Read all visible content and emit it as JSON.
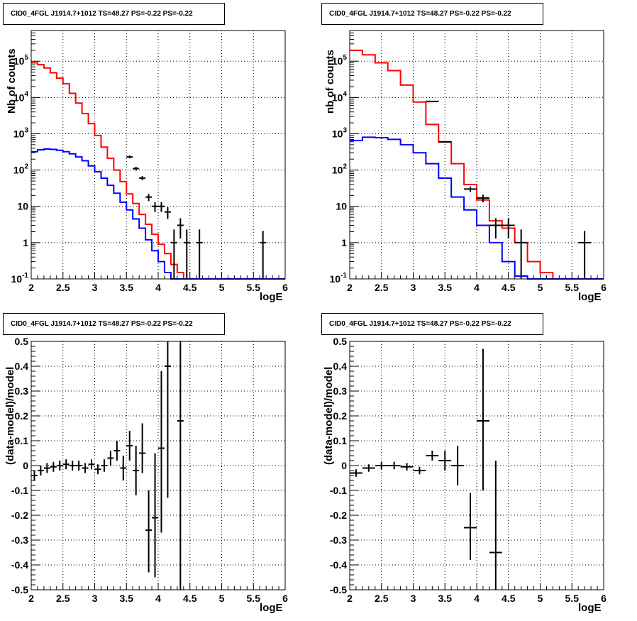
{
  "chart_data": [
    {
      "type": "line",
      "title": "CID0_4FGL J1914.7+1012 TS=48.27 PS=-0.22 PS=-0.22",
      "xlabel": "logE",
      "ylabel": "Nb of counts",
      "yscale": "log",
      "xlim": [
        2,
        6
      ],
      "ylim": [
        0.1,
        700000
      ],
      "grid": true,
      "x_ticks": [
        "2",
        "2.5",
        "3",
        "3.5",
        "4",
        "4.5",
        "5",
        "5.5",
        "6"
      ],
      "y_ticks": [
        "10^{-1}",
        "1",
        "10",
        "10^{2}",
        "10^{3}",
        "10^{4}",
        "10^{5}"
      ],
      "bin_edges": [
        2.0,
        2.1,
        2.2,
        2.3,
        2.4,
        2.5,
        2.6,
        2.7,
        2.8,
        2.9,
        3.0,
        3.1,
        3.2,
        3.3,
        3.4,
        3.5,
        3.6,
        3.7,
        3.8,
        3.9,
        4.0,
        4.1,
        4.2,
        4.3,
        4.4,
        4.5,
        4.6,
        4.7,
        4.8,
        4.9,
        5.0,
        5.1,
        5.2,
        5.3,
        5.4,
        5.5,
        5.6,
        5.7,
        5.8,
        5.9,
        6.0
      ],
      "series": [
        {
          "color": "#ff0000",
          "values": [
            90000,
            80000,
            65000,
            48000,
            34000,
            24000,
            13000,
            7000,
            3600,
            1900,
            900,
            430,
            210,
            100,
            48,
            22,
            12,
            6,
            3.2,
            1.7,
            0.9,
            0.5,
            0.25,
            0.15,
            0.1,
            0.08,
            0.08,
            0.08,
            0.08,
            0.08,
            0.08,
            0.08,
            0.08,
            0.08,
            0.08,
            0.08,
            0.08,
            0.08,
            0.08,
            0.08
          ]
        },
        {
          "color": "#0000ff",
          "values": [
            320,
            360,
            380,
            370,
            350,
            320,
            280,
            230,
            180,
            130,
            90,
            60,
            38,
            23,
            13,
            8,
            4.5,
            2.5,
            1.2,
            0.6,
            0.3,
            0.15,
            0.1,
            0.08,
            0.08,
            0.08,
            0.08,
            0.08,
            0.08,
            0.08,
            0.08,
            0.08,
            0.08,
            0.08,
            0.08,
            0.08,
            0.08,
            0.08,
            0.08,
            0.08
          ]
        }
      ],
      "points": [
        {
          "x": 3.55,
          "xerr": 0.05,
          "y": 230,
          "ylo": 210,
          "yhi": 250
        },
        {
          "x": 3.65,
          "xerr": 0.05,
          "y": 110,
          "ylo": 97,
          "yhi": 123
        },
        {
          "x": 3.75,
          "xerr": 0.05,
          "y": 60,
          "ylo": 52,
          "yhi": 68
        },
        {
          "x": 3.85,
          "xerr": 0.05,
          "y": 18,
          "ylo": 14,
          "yhi": 22
        },
        {
          "x": 3.95,
          "xerr": 0.05,
          "y": 10,
          "ylo": 7,
          "yhi": 13
        },
        {
          "x": 4.05,
          "xerr": 0.05,
          "y": 10,
          "ylo": 7,
          "yhi": 13
        },
        {
          "x": 4.15,
          "xerr": 0.05,
          "y": 7,
          "ylo": 4.5,
          "yhi": 9.5
        },
        {
          "x": 4.25,
          "xerr": 0.05,
          "y": 1,
          "ylo": 0.1,
          "yhi": 2.3
        },
        {
          "x": 4.35,
          "xerr": 0.05,
          "y": 3,
          "ylo": 1.3,
          "yhi": 4.7
        },
        {
          "x": 4.45,
          "xerr": 0.05,
          "y": 1,
          "ylo": 0.1,
          "yhi": 2.3
        },
        {
          "x": 4.65,
          "xerr": 0.05,
          "y": 1,
          "ylo": 0.1,
          "yhi": 2.3
        },
        {
          "x": 5.65,
          "xerr": 0.05,
          "y": 1,
          "ylo": 0.1,
          "yhi": 2.1
        }
      ]
    },
    {
      "type": "line",
      "title": "CID0_4FGL J1914.7+1012 TS=48.27 PS=-0.22 PS=-0.22",
      "xlabel": "logE",
      "ylabel": "nb of counts",
      "yscale": "log",
      "xlim": [
        2,
        6
      ],
      "ylim": [
        0.1,
        700000
      ],
      "grid": true,
      "x_ticks": [
        "2",
        "2.5",
        "3",
        "3.5",
        "4",
        "4.5",
        "5",
        "5.5",
        "6"
      ],
      "y_ticks": [
        "10^{-1}",
        "1",
        "10",
        "10^{2}",
        "10^{3}",
        "10^{4}",
        "10^{5}"
      ],
      "bin_edges": [
        2.0,
        2.2,
        2.4,
        2.6,
        2.8,
        3.0,
        3.2,
        3.4,
        3.6,
        3.8,
        4.0,
        4.2,
        4.4,
        4.6,
        4.8,
        5.0,
        5.2,
        5.4,
        5.6,
        5.8,
        6.0
      ],
      "series": [
        {
          "color": "#ff0000",
          "values": [
            200000,
            150000,
            90000,
            55000,
            22000,
            7500,
            1800,
            600,
            150,
            40,
            15,
            4,
            2.5,
            1,
            0.3,
            0.15,
            0.08,
            0.08,
            0.08,
            0.08
          ]
        },
        {
          "color": "#0000ff",
          "values": [
            650,
            800,
            780,
            700,
            500,
            300,
            150,
            60,
            18,
            8,
            3,
            1,
            0.3,
            0.12,
            0.08,
            0.08,
            0.08,
            0.08,
            0.08,
            0.08
          ]
        }
      ],
      "points": [
        {
          "x": 3.3,
          "xerr": 0.1,
          "y": 7800,
          "ylo": 7600,
          "yhi": 8000
        },
        {
          "x": 3.5,
          "xerr": 0.1,
          "y": 600,
          "ylo": 570,
          "yhi": 630
        },
        {
          "x": 3.9,
          "xerr": 0.1,
          "y": 30,
          "ylo": 25,
          "yhi": 35
        },
        {
          "x": 4.1,
          "xerr": 0.1,
          "y": 17,
          "ylo": 13,
          "yhi": 21
        },
        {
          "x": 4.3,
          "xerr": 0.1,
          "y": 3,
          "ylo": 1.3,
          "yhi": 4.7
        },
        {
          "x": 4.5,
          "xerr": 0.1,
          "y": 3,
          "ylo": 1.3,
          "yhi": 4.7
        },
        {
          "x": 4.7,
          "xerr": 0.1,
          "y": 1,
          "ylo": 0.1,
          "yhi": 2.3
        },
        {
          "x": 5.7,
          "xerr": 0.1,
          "y": 1,
          "ylo": 0.1,
          "yhi": 2.1
        }
      ]
    },
    {
      "type": "scatter",
      "title": "CID0_4FGL J1914.7+1012 TS=48.27 PS=-0.22 PS=-0.22",
      "xlabel": "logE",
      "ylabel": "(data-model)/model",
      "yscale": "linear",
      "xlim": [
        2,
        6
      ],
      "ylim": [
        -0.5,
        0.5
      ],
      "grid": true,
      "x_ticks": [
        "2",
        "2.5",
        "3",
        "3.5",
        "4",
        "4.5",
        "5",
        "5.5",
        "6"
      ],
      "y_ticks": [
        "-0.5",
        "-0.4",
        "-0.3",
        "-0.2",
        "-0.1",
        "0",
        "0.1",
        "0.2",
        "0.3",
        "0.4",
        "0.5"
      ],
      "points": [
        {
          "x": 2.05,
          "xerr": 0.05,
          "y": -0.04,
          "ylo": -0.06,
          "yhi": -0.02
        },
        {
          "x": 2.15,
          "xerr": 0.05,
          "y": -0.02,
          "ylo": -0.04,
          "yhi": 0.0
        },
        {
          "x": 2.25,
          "xerr": 0.05,
          "y": -0.01,
          "ylo": -0.03,
          "yhi": 0.01
        },
        {
          "x": 2.35,
          "xerr": 0.05,
          "y": -0.005,
          "ylo": -0.025,
          "yhi": 0.015
        },
        {
          "x": 2.45,
          "xerr": 0.05,
          "y": 0.0,
          "ylo": -0.02,
          "yhi": 0.02
        },
        {
          "x": 2.55,
          "xerr": 0.05,
          "y": 0.005,
          "ylo": -0.015,
          "yhi": 0.025
        },
        {
          "x": 2.65,
          "xerr": 0.05,
          "y": 0.0,
          "ylo": -0.02,
          "yhi": 0.02
        },
        {
          "x": 2.75,
          "xerr": 0.05,
          "y": 0.0,
          "ylo": -0.02,
          "yhi": 0.02
        },
        {
          "x": 2.85,
          "xerr": 0.05,
          "y": -0.01,
          "ylo": -0.03,
          "yhi": 0.01
        },
        {
          "x": 2.95,
          "xerr": 0.05,
          "y": 0.005,
          "ylo": -0.015,
          "yhi": 0.025
        },
        {
          "x": 3.05,
          "xerr": 0.05,
          "y": -0.015,
          "ylo": -0.035,
          "yhi": 0.005
        },
        {
          "x": 3.15,
          "xerr": 0.05,
          "y": 0.0,
          "ylo": -0.025,
          "yhi": 0.025
        },
        {
          "x": 3.25,
          "xerr": 0.05,
          "y": 0.03,
          "ylo": 0.0,
          "yhi": 0.06
        },
        {
          "x": 3.35,
          "xerr": 0.05,
          "y": 0.06,
          "ylo": 0.02,
          "yhi": 0.1
        },
        {
          "x": 3.45,
          "xerr": 0.05,
          "y": -0.01,
          "ylo": -0.06,
          "yhi": 0.04
        },
        {
          "x": 3.55,
          "xerr": 0.05,
          "y": 0.08,
          "ylo": 0.02,
          "yhi": 0.14
        },
        {
          "x": 3.65,
          "xerr": 0.05,
          "y": -0.02,
          "ylo": -0.12,
          "yhi": 0.08
        },
        {
          "x": 3.75,
          "xerr": 0.05,
          "y": 0.05,
          "ylo": -0.03,
          "yhi": 0.17
        },
        {
          "x": 3.85,
          "xerr": 0.05,
          "y": -0.26,
          "ylo": -0.43,
          "yhi": -0.1
        },
        {
          "x": 3.95,
          "xerr": 0.05,
          "y": -0.21,
          "ylo": -0.45,
          "yhi": 0.05
        },
        {
          "x": 4.05,
          "xerr": 0.05,
          "y": 0.07,
          "ylo": -0.27,
          "yhi": 0.38
        },
        {
          "x": 4.15,
          "xerr": 0.05,
          "y": 0.4,
          "ylo": -0.13,
          "yhi": 0.5
        },
        {
          "x": 4.35,
          "xerr": 0.05,
          "y": 0.18,
          "ylo": -0.5,
          "yhi": 0.5
        }
      ]
    },
    {
      "type": "scatter",
      "title": "CID0_4FGL J1914.7+1012 TS=48.27 PS=-0.22 PS=-0.22",
      "xlabel": "logE",
      "ylabel": "(data-model)/model",
      "yscale": "linear",
      "xlim": [
        2,
        6
      ],
      "ylim": [
        -0.5,
        0.5
      ],
      "grid": true,
      "x_ticks": [
        "2",
        "2.5",
        "3",
        "3.5",
        "4",
        "4.5",
        "5",
        "5.5",
        "6"
      ],
      "y_ticks": [
        "-0.5",
        "-0.4",
        "-0.3",
        "-0.2",
        "-0.1",
        "0",
        "0.1",
        "0.2",
        "0.3",
        "0.4",
        "0.5"
      ],
      "points": [
        {
          "x": 2.1,
          "xerr": 0.1,
          "y": -0.03,
          "ylo": -0.045,
          "yhi": -0.015
        },
        {
          "x": 2.3,
          "xerr": 0.1,
          "y": -0.01,
          "ylo": -0.025,
          "yhi": 0.005
        },
        {
          "x": 2.5,
          "xerr": 0.1,
          "y": 0.0,
          "ylo": -0.015,
          "yhi": 0.015
        },
        {
          "x": 2.7,
          "xerr": 0.1,
          "y": 0.0,
          "ylo": -0.015,
          "yhi": 0.015
        },
        {
          "x": 2.9,
          "xerr": 0.1,
          "y": -0.005,
          "ylo": -0.02,
          "yhi": 0.01
        },
        {
          "x": 3.1,
          "xerr": 0.1,
          "y": -0.02,
          "ylo": -0.035,
          "yhi": -0.005
        },
        {
          "x": 3.3,
          "xerr": 0.1,
          "y": 0.04,
          "ylo": 0.02,
          "yhi": 0.06
        },
        {
          "x": 3.5,
          "xerr": 0.1,
          "y": 0.02,
          "ylo": -0.02,
          "yhi": 0.06
        },
        {
          "x": 3.7,
          "xerr": 0.1,
          "y": 0.0,
          "ylo": -0.08,
          "yhi": 0.08
        },
        {
          "x": 3.9,
          "xerr": 0.1,
          "y": -0.25,
          "ylo": -0.38,
          "yhi": -0.11
        },
        {
          "x": 4.1,
          "xerr": 0.1,
          "y": 0.18,
          "ylo": -0.1,
          "yhi": 0.47
        },
        {
          "x": 4.3,
          "xerr": 0.1,
          "y": -0.35,
          "ylo": -0.5,
          "yhi": 0.02
        }
      ]
    }
  ]
}
